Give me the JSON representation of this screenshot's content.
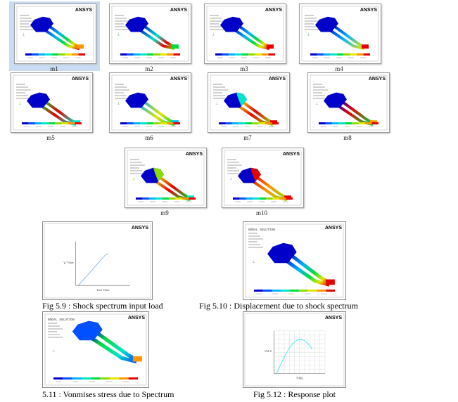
{
  "thumbnails": [
    {
      "label": "m1",
      "brand": "ANSYS"
    },
    {
      "label": "m2",
      "brand": "ANSYS"
    },
    {
      "label": "m3",
      "brand": "ANSYS"
    },
    {
      "label": "m4",
      "brand": "ANSYS"
    },
    {
      "label": "m5",
      "brand": "ANSYS"
    },
    {
      "label": "m6",
      "brand": "ANSYS"
    },
    {
      "label": "m7",
      "brand": "ANSYS"
    },
    {
      "label": "m8",
      "brand": "ANSYS"
    },
    {
      "label": "m9",
      "brand": "ANSYS"
    },
    {
      "label": "m10",
      "brand": "ANSYS"
    }
  ],
  "figures": [
    {
      "caption": "Fig 5.9 : Shock spectrum input load",
      "brand": "ANSYS",
      "title": "",
      "ylabel": "\"g\" Value",
      "xlabel": "Time Value"
    },
    {
      "caption": "Fig 5.10 : Displacement due to shock spectrum",
      "brand": "ANSYS",
      "title": "NODAL SOLUTION"
    },
    {
      "caption": "5.11 : Vonmises stress due to Spectrum",
      "brand": "ANSYS",
      "title": "NODAL SOLUTION"
    },
    {
      "caption": "Fig 5.12 : Response plot",
      "brand": "ANSYS",
      "title": "",
      "ylabel": "VALU",
      "xlabel": "TIME"
    }
  ],
  "colors": {
    "selection": "#c9dcf3",
    "contour": [
      "#0000c8",
      "#0050ff",
      "#00b4ff",
      "#00e6c8",
      "#00dc3c",
      "#8cdc00",
      "#e6e600",
      "#ff9600",
      "#e60000"
    ]
  }
}
